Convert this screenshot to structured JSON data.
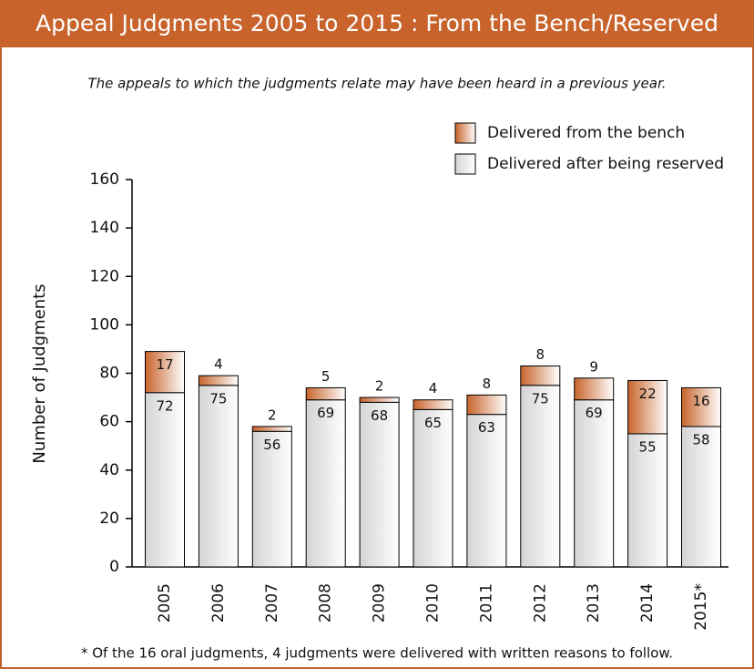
{
  "chart_data": {
    "type": "stacked_bar",
    "title": "Appeal Judgments 2005 to 2015 : From the Bench/Reserved",
    "subtitle": "The appeals to which the judgments relate may have been heard in a previous year.",
    "y_label": "Number of Judgments",
    "footnote": "* Of the 16 oral judgments, 4 judgments were delivered with written reasons to follow.",
    "categories": [
      "2005",
      "2006",
      "2007",
      "2008",
      "2009",
      "2010",
      "2011",
      "2012",
      "2013",
      "2014",
      "2015*"
    ],
    "series": [
      {
        "name": "Delivered after being reserved",
        "color": "#d4d4d4",
        "values": [
          72,
          75,
          56,
          69,
          68,
          65,
          63,
          75,
          69,
          55,
          58
        ]
      },
      {
        "name": "Delivered from the bench",
        "color": "#c8642c",
        "values": [
          17,
          4,
          2,
          5,
          2,
          4,
          8,
          8,
          9,
          22,
          16
        ]
      }
    ],
    "ylim": [
      0,
      160
    ],
    "yticks": [
      0,
      20,
      40,
      60,
      80,
      100,
      120,
      140,
      160
    ],
    "grid": false
  }
}
